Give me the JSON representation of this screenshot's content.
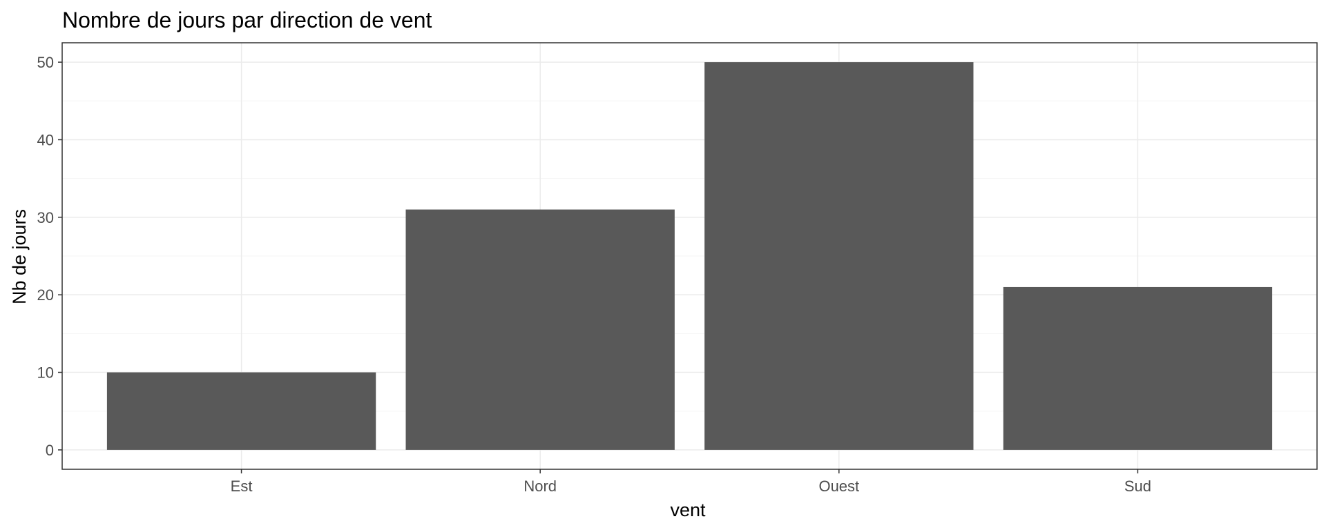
{
  "chart_data": {
    "type": "bar",
    "title": "Nombre de jours par direction de vent",
    "xlabel": "vent",
    "ylabel": "Nb de jours",
    "categories": [
      "Est",
      "Nord",
      "Ouest",
      "Sud"
    ],
    "values": [
      10,
      31,
      50,
      21
    ],
    "ylim": [
      -2.5,
      52.5
    ],
    "yticks": [
      0,
      10,
      20,
      30,
      40,
      50
    ],
    "grid": true,
    "legend": "none",
    "colors": {
      "bar": "#595959",
      "panel_border": "#333333",
      "grid_major": "#ebebeb",
      "grid_minor": "#f5f5f5"
    }
  }
}
